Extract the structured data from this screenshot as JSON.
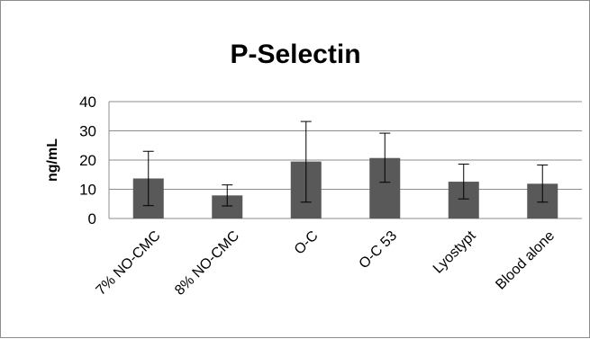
{
  "chart_data": {
    "type": "bar",
    "title": "P-Selectin",
    "ylabel": "ng/mL",
    "xlabel": "",
    "categories": [
      "7% NO-CMC",
      "8% NO-CMC",
      "O-C",
      "O-C 53",
      "Lyostypt",
      "Blood alone"
    ],
    "values": [
      13.7,
      7.9,
      19.5,
      20.7,
      12.6,
      11.9
    ],
    "error_low": [
      4.4,
      4.3,
      5.6,
      12.4,
      6.7,
      5.6
    ],
    "error_high": [
      23.0,
      11.5,
      33.2,
      29.2,
      18.6,
      18.3
    ],
    "ylim": [
      0,
      40
    ],
    "yticks": [
      0,
      10,
      20,
      30,
      40
    ],
    "grid": true,
    "legend": "none",
    "bar_color": "#595959",
    "grid_color": "#8c8c8c"
  }
}
